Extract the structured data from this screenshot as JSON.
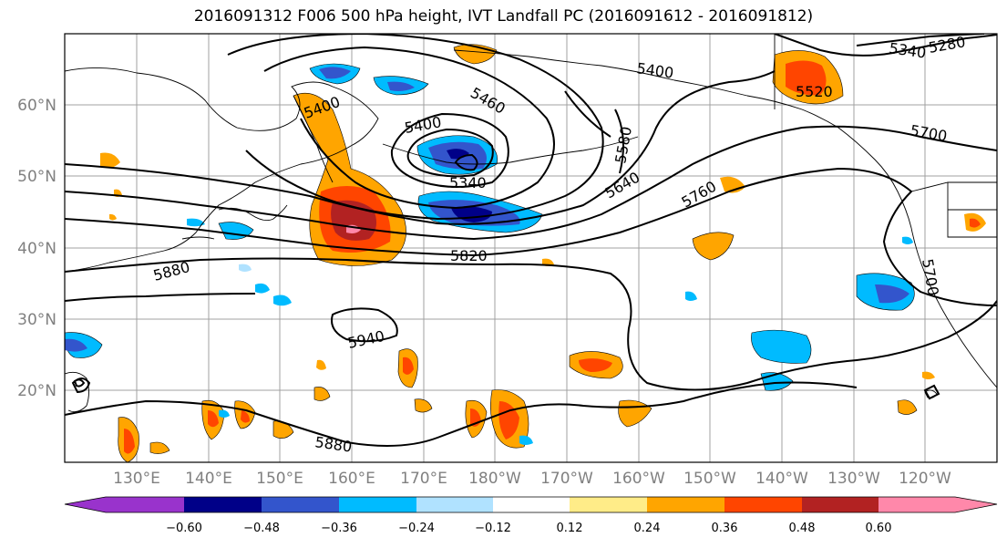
{
  "title": "2016091312 F006 500 hPa height, IVT Landfall PC (2016091612 - 2016091812)",
  "lat_labels": [
    "60°N",
    "50°N",
    "40°N",
    "30°N",
    "20°N"
  ],
  "lon_labels": [
    "130°E",
    "140°E",
    "150°E",
    "160°E",
    "170°E",
    "180°W",
    "170°W",
    "160°W",
    "150°W",
    "140°W",
    "130°W",
    "120°W"
  ],
  "contour_labels": [
    "5400",
    "5400",
    "5460",
    "5400",
    "5340",
    "5520",
    "5340",
    "5280",
    "5700",
    "5580",
    "5640",
    "5760",
    "5820",
    "5880",
    "5940",
    "5880",
    "5700"
  ],
  "colorbar": {
    "tick_labels": [
      "−0.60",
      "−0.48",
      "−0.36",
      "−0.24",
      "−0.12",
      "0.12",
      "0.24",
      "0.36",
      "0.48",
      "0.60"
    ],
    "colors": [
      "#9933cc",
      "#000088",
      "#3355cc",
      "#00bbff",
      "#b0e2ff",
      "#ffffff",
      "#ffec88",
      "#ffa500",
      "#ff4500",
      "#b22222",
      "#ff88aa"
    ]
  },
  "shading_colors": {
    "neg_strong": "#3355cc",
    "neg_darkest": "#000088",
    "neg_mid": "#00bbff",
    "neg_light": "#b0e2ff",
    "pos_light": "#ffec88",
    "pos_mid": "#ffa500",
    "pos_strong": "#ff4500",
    "pos_darker": "#b22222",
    "pos_max": "#ff88aa"
  }
}
